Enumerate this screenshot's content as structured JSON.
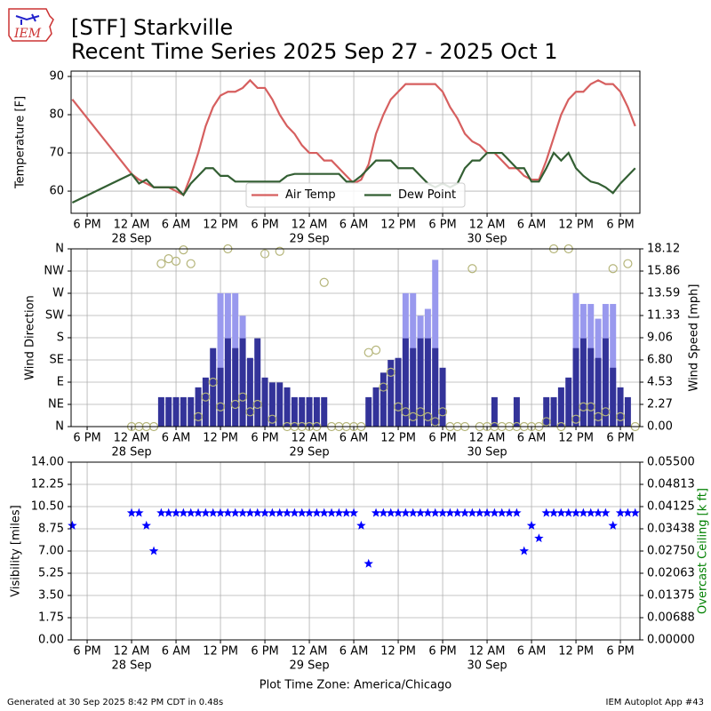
{
  "title": "[STF] Starkville",
  "subtitle": "Recent Time Series 2025 Sep 27 - 2025 Oct 1",
  "logo_text": "IEM",
  "footer_left": "Generated at 30 Sep 2025 8:42 PM CDT in 0.48s",
  "footer_right": "IEM Autoplot App #43",
  "time_axis": {
    "xlabel": "Plot Time Zone: America/Chicago",
    "xlim": [
      "2025-09-27 15:50",
      "2025-09-30 20:38"
    ],
    "xticks": [
      {
        "value": "2025-09-27 18:00",
        "label": "6 PM"
      },
      {
        "value": "2025-09-28 00:00",
        "label": "12 AM"
      },
      {
        "value": "2025-09-28 06:00",
        "label": "6 AM"
      },
      {
        "value": "2025-09-28 12:00",
        "label": "12 PM"
      },
      {
        "value": "2025-09-28 18:00",
        "label": "6 PM"
      },
      {
        "value": "2025-09-29 00:00",
        "label": "12 AM"
      },
      {
        "value": "2025-09-29 06:00",
        "label": "6 AM"
      },
      {
        "value": "2025-09-29 12:00",
        "label": "12 PM"
      },
      {
        "value": "2025-09-29 18:00",
        "label": "6 PM"
      },
      {
        "value": "2025-09-30 00:00",
        "label": "12 AM"
      },
      {
        "value": "2025-09-30 06:00",
        "label": "6 AM"
      },
      {
        "value": "2025-09-30 12:00",
        "label": "12 PM"
      },
      {
        "value": "2025-09-30 18:00",
        "label": "6 PM"
      }
    ],
    "xdates": [
      {
        "value": "2025-09-28 00:00",
        "label": "28 Sep"
      },
      {
        "value": "2025-09-29 00:00",
        "label": "29 Sep"
      },
      {
        "value": "2025-09-30 00:00",
        "label": "30 Sep"
      }
    ],
    "x": [
      "2025-09-27 16:00",
      "2025-09-28 00:00",
      "2025-09-28 01:00",
      "2025-09-28 02:00",
      "2025-09-28 03:00",
      "2025-09-28 04:00",
      "2025-09-28 05:00",
      "2025-09-28 06:00",
      "2025-09-28 07:00",
      "2025-09-28 08:00",
      "2025-09-28 09:00",
      "2025-09-28 10:00",
      "2025-09-28 11:00",
      "2025-09-28 12:00",
      "2025-09-28 13:00",
      "2025-09-28 14:00",
      "2025-09-28 15:00",
      "2025-09-28 16:00",
      "2025-09-28 17:00",
      "2025-09-28 18:00",
      "2025-09-28 19:00",
      "2025-09-28 20:00",
      "2025-09-28 21:00",
      "2025-09-28 22:00",
      "2025-09-28 23:00",
      "2025-09-29 00:00",
      "2025-09-29 01:00",
      "2025-09-29 02:00",
      "2025-09-29 03:00",
      "2025-09-29 04:00",
      "2025-09-29 05:00",
      "2025-09-29 06:00",
      "2025-09-29 07:00",
      "2025-09-29 08:00",
      "2025-09-29 09:00",
      "2025-09-29 10:00",
      "2025-09-29 11:00",
      "2025-09-29 12:00",
      "2025-09-29 13:00",
      "2025-09-29 14:00",
      "2025-09-29 15:00",
      "2025-09-29 16:00",
      "2025-09-29 17:00",
      "2025-09-29 18:00",
      "2025-09-29 19:00",
      "2025-09-29 20:00",
      "2025-09-29 21:00",
      "2025-09-29 22:00",
      "2025-09-29 23:00",
      "2025-09-30 00:00",
      "2025-09-30 01:00",
      "2025-09-30 02:00",
      "2025-09-30 03:00",
      "2025-09-30 04:00",
      "2025-09-30 05:00",
      "2025-09-30 06:00",
      "2025-09-30 07:00",
      "2025-09-30 08:00",
      "2025-09-30 09:00",
      "2025-09-30 10:00",
      "2025-09-30 11:00",
      "2025-09-30 12:00",
      "2025-09-30 13:00",
      "2025-09-30 14:00",
      "2025-09-30 15:00",
      "2025-09-30 16:00",
      "2025-09-30 17:00",
      "2025-09-30 18:00",
      "2025-09-30 19:00",
      "2025-09-30 20:00"
    ]
  },
  "chart_data": [
    {
      "type": "line",
      "ylabel": "Temperature [F]",
      "ylim": [
        54.2,
        91.4
      ],
      "yticks": [
        60,
        70,
        80,
        90
      ],
      "grid": true,
      "legend": "lower center",
      "series": [
        {
          "name": "Air Temp",
          "color": "#d65f5f",
          "values": [
            84,
            64.5,
            63,
            62,
            61,
            61,
            61,
            60,
            59,
            64,
            70,
            77,
            82,
            85,
            86,
            86,
            87,
            89,
            87,
            87,
            84,
            80,
            77,
            75,
            72,
            70,
            70,
            68,
            68,
            66,
            64,
            62,
            63,
            67,
            75,
            80,
            84,
            86,
            88,
            88,
            88,
            88,
            88,
            86,
            82,
            79,
            75,
            73,
            72,
            70,
            70,
            68,
            66,
            66,
            64,
            63,
            63,
            68,
            74,
            80,
            84,
            86,
            86,
            88,
            89,
            88,
            88,
            86,
            82,
            77
          ]
        },
        {
          "name": "Dew Point",
          "color": "#335f33",
          "values": [
            57,
            64.5,
            62,
            63,
            61,
            61,
            61,
            61,
            59,
            62,
            64,
            66,
            66,
            64,
            64,
            62.5,
            62.5,
            62.5,
            62.5,
            62.5,
            62.5,
            62.5,
            64,
            64.5,
            64.5,
            64.5,
            64.5,
            64.5,
            64.5,
            64.5,
            62.5,
            62.5,
            64,
            66,
            68,
            68,
            68,
            66,
            66,
            66,
            64,
            62,
            61,
            62,
            61,
            62,
            66,
            68,
            68,
            70,
            70,
            70,
            68,
            66,
            66,
            62.5,
            62.5,
            66,
            70,
            68,
            70,
            66,
            64,
            62.5,
            62,
            61,
            59.5,
            62,
            64,
            66
          ]
        }
      ]
    },
    {
      "type": "bar",
      "ylabel": "Wind Direction",
      "y2label": "Wind Speed [mph]",
      "grid": true,
      "ylim": [
        0,
        360
      ],
      "yticks": [
        {
          "value": 0,
          "label": "N"
        },
        {
          "value": 45,
          "label": "NE"
        },
        {
          "value": 90,
          "label": "E"
        },
        {
          "value": 135,
          "label": "SE"
        },
        {
          "value": 180,
          "label": "S"
        },
        {
          "value": 225,
          "label": "SW"
        },
        {
          "value": 270,
          "label": "W"
        },
        {
          "value": 315,
          "label": "NW"
        },
        {
          "value": 360,
          "label": "N"
        }
      ],
      "y2lim": [
        0,
        18.12
      ],
      "y2ticks": [
        {
          "value": 0,
          "label": "0.00"
        },
        {
          "value": 2.265,
          "label": "2.27"
        },
        {
          "value": 4.53,
          "label": "4.53"
        },
        {
          "value": 6.795,
          "label": "6.80"
        },
        {
          "value": 9.06,
          "label": "9.06"
        },
        {
          "value": 11.325,
          "label": "11.33"
        },
        {
          "value": 13.59,
          "label": "13.59"
        },
        {
          "value": 15.855,
          "label": "15.86"
        },
        {
          "value": 18.12,
          "label": "18.12"
        }
      ],
      "series": [
        {
          "type": "bar",
          "axis": "y2",
          "color": "#9999ee",
          "values": [
            null,
            null,
            null,
            null,
            null,
            null,
            null,
            null,
            null,
            null,
            null,
            null,
            null,
            13.6,
            13.6,
            13.6,
            11.3,
            null,
            null,
            null,
            null,
            null,
            null,
            null,
            null,
            null,
            null,
            null,
            null,
            null,
            null,
            null,
            null,
            null,
            null,
            null,
            null,
            null,
            13.6,
            13.6,
            11.3,
            12,
            17,
            null,
            null,
            null,
            null,
            null,
            null,
            null,
            null,
            null,
            null,
            null,
            null,
            null,
            null,
            null,
            null,
            null,
            null,
            13.6,
            12.5,
            12.5,
            11,
            12.5,
            12.5,
            null,
            null,
            null
          ]
        },
        {
          "type": "bar",
          "axis": "y2",
          "color": "#333399",
          "values": [
            null,
            0,
            0,
            0,
            0,
            3,
            3,
            3,
            3,
            3,
            4,
            5,
            8,
            6,
            9,
            8,
            9,
            7,
            9,
            5,
            4.5,
            4.5,
            4,
            3,
            3,
            3,
            3,
            3,
            0,
            0,
            0,
            0,
            0,
            3,
            4,
            5.5,
            6.8,
            7,
            9,
            8,
            9,
            9,
            8,
            6,
            0,
            0,
            0,
            0,
            0,
            0,
            3,
            0,
            0,
            3,
            0,
            0,
            0,
            3,
            3,
            4,
            5,
            8,
            9,
            8,
            7,
            9,
            6,
            4,
            3,
            0
          ]
        },
        {
          "type": "scatter",
          "color": "#b5b57a",
          "values": [
            null,
            0,
            0,
            0,
            0,
            330,
            340,
            335,
            358,
            330,
            20,
            60,
            90,
            40,
            360,
            45,
            60,
            30,
            45,
            350,
            15,
            355,
            0,
            0,
            0,
            0,
            0,
            292,
            0,
            0,
            0,
            0,
            0,
            150,
            155,
            80,
            110,
            40,
            30,
            20,
            30,
            20,
            10,
            30,
            0,
            0,
            0,
            320,
            0,
            0,
            0,
            0,
            0,
            0,
            0,
            0,
            0,
            10,
            360,
            0,
            360,
            15,
            40,
            40,
            20,
            30,
            320,
            20,
            330,
            0
          ]
        }
      ]
    },
    {
      "type": "scatter",
      "ylabel": "Visibility [miles]",
      "y2label": "Overcast Ceiling [k ft]",
      "y2label_color": "#008000",
      "grid": true,
      "ylim": [
        0,
        14
      ],
      "yticks": [
        {
          "value": 0,
          "label": "0.00"
        },
        {
          "value": 1.75,
          "label": "1.75"
        },
        {
          "value": 3.5,
          "label": "3.50"
        },
        {
          "value": 5.25,
          "label": "5.25"
        },
        {
          "value": 7,
          "label": "7.00"
        },
        {
          "value": 8.75,
          "label": "8.75"
        },
        {
          "value": 10.5,
          "label": "10.50"
        },
        {
          "value": 12.25,
          "label": "12.25"
        },
        {
          "value": 14,
          "label": "14.00"
        }
      ],
      "y2lim": [
        0,
        0.055
      ],
      "y2ticks": [
        {
          "value": 0,
          "label": "0.00000"
        },
        {
          "value": 0.006875,
          "label": "0.00688"
        },
        {
          "value": 0.01375,
          "label": "0.01375"
        },
        {
          "value": 0.020625,
          "label": "0.02063"
        },
        {
          "value": 0.0275,
          "label": "0.02750"
        },
        {
          "value": 0.034375,
          "label": "0.03438"
        },
        {
          "value": 0.04125,
          "label": "0.04125"
        },
        {
          "value": 0.048125,
          "label": "0.04813"
        },
        {
          "value": 0.055,
          "label": "0.05500"
        }
      ],
      "series": [
        {
          "type": "scatter",
          "marker": "star",
          "color": "#0000ff",
          "values": [
            9,
            10,
            10,
            9,
            7,
            10,
            10,
            10,
            10,
            10,
            10,
            10,
            10,
            10,
            10,
            10,
            10,
            10,
            10,
            10,
            10,
            10,
            10,
            10,
            10,
            10,
            10,
            10,
            10,
            10,
            10,
            10,
            9,
            6,
            10,
            10,
            10,
            10,
            10,
            10,
            10,
            10,
            10,
            10,
            10,
            10,
            10,
            10,
            10,
            10,
            10,
            10,
            10,
            10,
            7,
            9,
            8,
            10,
            10,
            10,
            10,
            10,
            10,
            10,
            10,
            10,
            9,
            10,
            10,
            10
          ]
        }
      ]
    }
  ]
}
